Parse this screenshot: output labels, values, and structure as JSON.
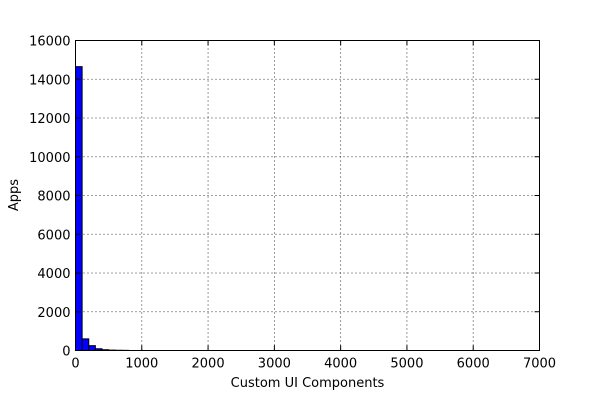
{
  "chart_data": {
    "type": "bar",
    "title": "",
    "xlabel": "Custom UI Components",
    "ylabel": "Apps",
    "xlim": [
      0,
      7000
    ],
    "ylim": [
      0,
      16000
    ],
    "xticks": [
      0,
      1000,
      2000,
      3000,
      4000,
      5000,
      6000,
      7000
    ],
    "yticks": [
      0,
      2000,
      4000,
      6000,
      8000,
      10000,
      12000,
      14000,
      16000
    ],
    "grid": true,
    "bins": [
      {
        "x0": 0,
        "x1": 100,
        "value": 14650
      },
      {
        "x0": 100,
        "x1": 200,
        "value": 600
      },
      {
        "x0": 200,
        "x1": 300,
        "value": 250
      },
      {
        "x0": 300,
        "x1": 400,
        "value": 90
      },
      {
        "x0": 400,
        "x1": 500,
        "value": 40
      },
      {
        "x0": 500,
        "x1": 600,
        "value": 20
      },
      {
        "x0": 600,
        "x1": 700,
        "value": 12
      },
      {
        "x0": 700,
        "x1": 800,
        "value": 8
      }
    ],
    "bar_color": "#0000ff"
  }
}
